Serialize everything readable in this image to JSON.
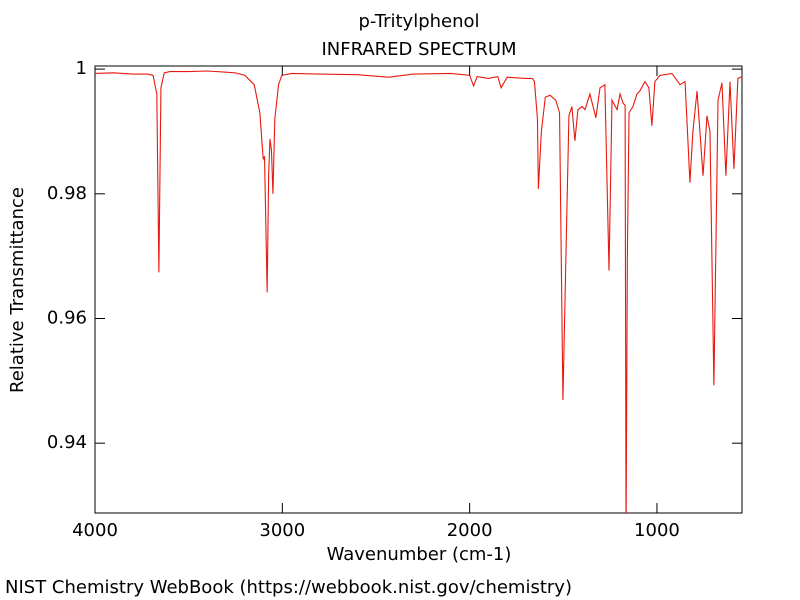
{
  "chart_data": {
    "type": "line",
    "title": "p-Tritylphenol",
    "subtitle": "INFRARED SPECTRUM",
    "x_label": "Wavenumber (cm-1)",
    "y_label": "Relative Transmittance",
    "source": "NIST Chemistry WebBook (https://webbook.nist.gov/chemistry)",
    "color": "#e8190f",
    "x": [
      4000,
      3900,
      3800,
      3720,
      3690,
      3670,
      3659,
      3648,
      3630,
      3600,
      3500,
      3400,
      3300,
      3250,
      3200,
      3150,
      3120,
      3102,
      3095,
      3081,
      3073,
      3066,
      3058,
      3050,
      3040,
      3020,
      3003,
      2950,
      2800,
      2600,
      2430,
      2300,
      2100,
      2000,
      1979,
      1960,
      1900,
      1850,
      1832,
      1800,
      1700,
      1664,
      1654,
      1638,
      1633,
      1617,
      1596,
      1570,
      1540,
      1520,
      1502,
      1486,
      1470,
      1454,
      1438,
      1422,
      1400,
      1384,
      1358,
      1326,
      1304,
      1278,
      1256,
      1240,
      1213,
      1197,
      1180,
      1170,
      1165,
      1158,
      1149,
      1128,
      1107,
      1091,
      1064,
      1043,
      1027,
      1011,
      984,
      920,
      877,
      850,
      824,
      808,
      786,
      754,
      733,
      717,
      696,
      674,
      653,
      632,
      610,
      589,
      568,
      546
    ],
    "values": [
      0.9993,
      0.9994,
      0.9992,
      0.9992,
      0.999,
      0.996,
      0.9674,
      0.997,
      0.9994,
      0.9996,
      0.9996,
      0.9997,
      0.9995,
      0.9994,
      0.999,
      0.9975,
      0.993,
      0.9856,
      0.986,
      0.9642,
      0.983,
      0.9888,
      0.987,
      0.98,
      0.992,
      0.9975,
      0.999,
      0.9993,
      0.9992,
      0.9991,
      0.9987,
      0.9992,
      0.9993,
      0.999,
      0.9973,
      0.9988,
      0.9985,
      0.9988,
      0.997,
      0.9987,
      0.9985,
      0.9985,
      0.998,
      0.992,
      0.9808,
      0.99,
      0.9955,
      0.9958,
      0.995,
      0.993,
      0.9469,
      0.97,
      0.9925,
      0.994,
      0.9885,
      0.9935,
      0.994,
      0.9935,
      0.996,
      0.9922,
      0.997,
      0.9975,
      0.9677,
      0.995,
      0.9935,
      0.996,
      0.9945,
      0.9942,
      0.925,
      0.97,
      0.993,
      0.994,
      0.996,
      0.9965,
      0.998,
      0.997,
      0.9909,
      0.998,
      0.999,
      0.9993,
      0.9975,
      0.998,
      0.9818,
      0.99,
      0.9965,
      0.9829,
      0.9925,
      0.99,
      0.9493,
      0.995,
      0.9978,
      0.9829,
      0.998,
      0.984,
      0.9985,
      0.9988
    ],
    "xlim": [
      4000,
      546
    ],
    "ylim": [
      0.9288,
      1.0005
    ],
    "xticks": [
      4000,
      3000,
      2000,
      1000
    ],
    "yticks": [
      0.94,
      0.96,
      0.98,
      1
    ]
  }
}
